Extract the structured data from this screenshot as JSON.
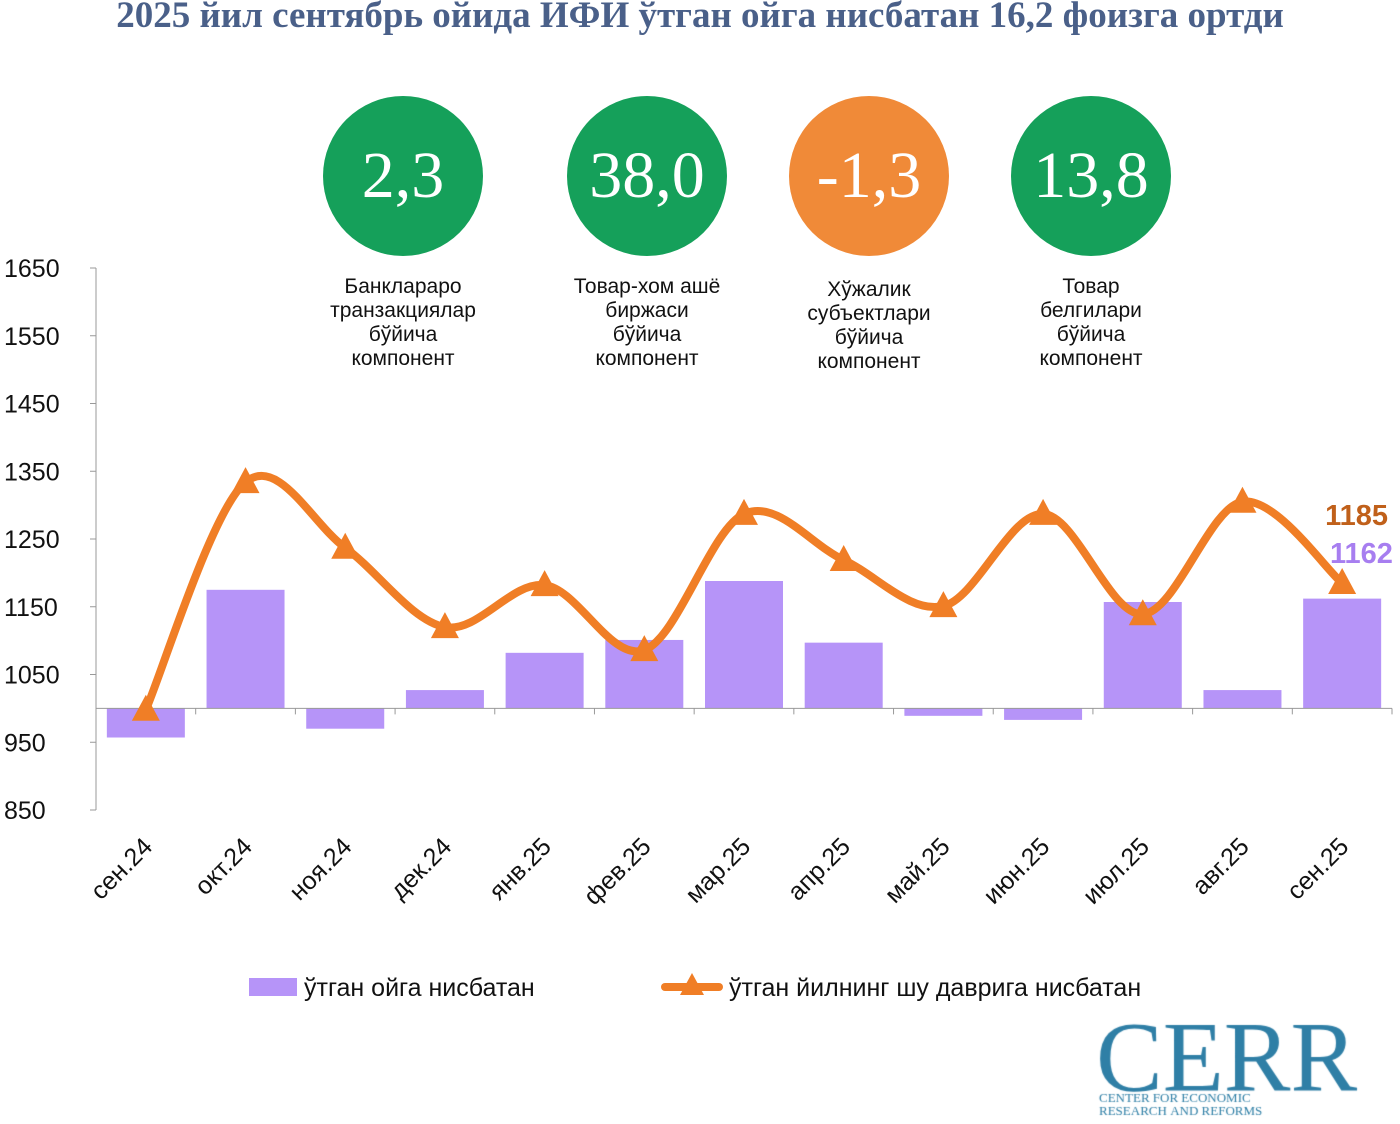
{
  "title": "2025 йил сентябрь ойида ИФИ ўтган ойга нисбатан 16,2 фоизга ортди",
  "components": [
    {
      "value": "2,3",
      "color": "#15a05a",
      "label": [
        "Банклараро",
        "транзакциялар",
        "бўйича",
        "компонент"
      ]
    },
    {
      "value": "38,0",
      "color": "#15a05a",
      "label": [
        "Товар-хом ашё",
        "биржаси",
        "бўйича",
        "компонент"
      ]
    },
    {
      "value": "-1,3",
      "color": "#f08a38",
      "label": [
        "Хўжалик",
        "субъектлари",
        "бўйича",
        "компонент"
      ]
    },
    {
      "value": "13,8",
      "color": "#15a05a",
      "label": [
        "Товар",
        "белгилари",
        "бўйича",
        "компонент"
      ]
    }
  ],
  "chart_data": {
    "type": "bar+line",
    "categories": [
      "сен.24",
      "окт.24",
      "ноя.24",
      "дек.24",
      "янв.25",
      "фев.25",
      "мар.25",
      "апр.25",
      "май.25",
      "июн.25",
      "июл.25",
      "авг.25",
      "сен.25"
    ],
    "ylim": [
      850,
      1650
    ],
    "yticks": [
      850,
      950,
      1050,
      1150,
      1250,
      1350,
      1450,
      1550,
      1650
    ],
    "bar_baseline": 1000,
    "series": [
      {
        "name": "ўтган ойга нисбатан",
        "type": "bar",
        "color": "#b694f8",
        "values": [
          957,
          1175,
          970,
          1027,
          1082,
          1101,
          1188,
          1097,
          989,
          983,
          1157,
          1027,
          1162
        ]
      },
      {
        "name": "ўтган йилнинг шу даврига нисбатан",
        "type": "line",
        "color": "#f07e26",
        "values": [
          998,
          1334,
          1237,
          1120,
          1182,
          1086,
          1287,
          1219,
          1151,
          1287,
          1139,
          1305,
          1185
        ]
      }
    ],
    "annotations": [
      {
        "text": "1185",
        "color": "#c0601a"
      },
      {
        "text": "1162",
        "color": "#a77ef0"
      }
    ],
    "legend_position": "bottom",
    "grid": false
  },
  "logo": {
    "big": "CERR",
    "line1": "CENTER FOR ECONOMIC",
    "line2": "RESEARCH AND REFORMS"
  }
}
